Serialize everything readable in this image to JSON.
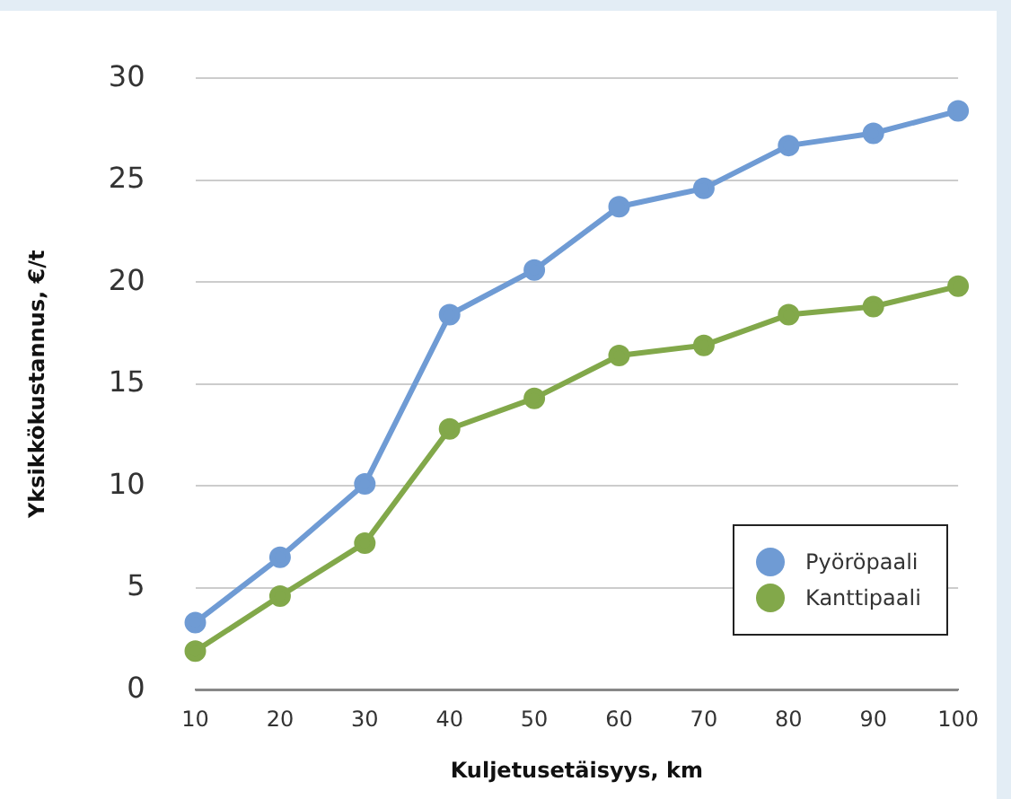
{
  "chart_data": {
    "type": "line",
    "xlabel": "Kuljetusetäisyys, km",
    "ylabel": "Yksikkökustannus, €/t",
    "categories": [
      "10",
      "20",
      "30",
      "40",
      "50",
      "60",
      "70",
      "80",
      "90",
      "100"
    ],
    "series": [
      {
        "name": "Pyöröpaali",
        "color": "#6f9bd4",
        "values": [
          3.3,
          6.5,
          10.1,
          18.4,
          20.6,
          23.7,
          24.6,
          26.7,
          27.3,
          28.4
        ]
      },
      {
        "name": "Kanttipaali",
        "color": "#82a84a",
        "values": [
          1.9,
          4.6,
          7.2,
          12.8,
          14.3,
          16.4,
          16.9,
          18.4,
          18.8,
          19.8
        ]
      }
    ],
    "ylim": [
      0,
      30
    ],
    "yticks": [
      0,
      5,
      10,
      15,
      20,
      25,
      30
    ],
    "grid": "y",
    "legend": "bottom right",
    "marker": "circle",
    "line_style": "solid"
  }
}
